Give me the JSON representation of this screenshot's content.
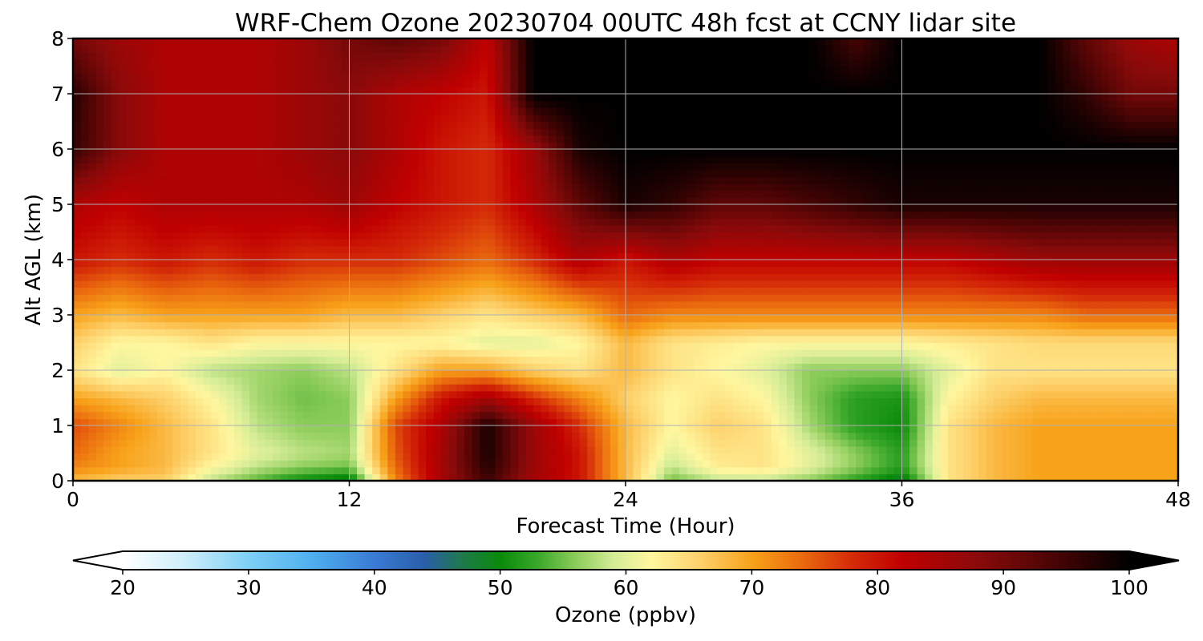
{
  "chart_data": {
    "type": "heatmap",
    "title": "WRF-Chem Ozone  20230704 00UTC 48h fcst at CCNY lidar site",
    "xlabel": "Forecast Time (Hour)",
    "ylabel": "Alt AGL (km)",
    "xlim": [
      0,
      48
    ],
    "ylim": [
      0,
      8
    ],
    "x_ticks": [
      "0",
      "12",
      "24",
      "36",
      "48"
    ],
    "y_ticks": [
      "0",
      "1",
      "2",
      "3",
      "4",
      "5",
      "6",
      "7",
      "8"
    ],
    "grid": true,
    "colorbar": {
      "label": "Ozone  (ppbv)",
      "min": 20,
      "max": 100,
      "ticks": [
        "20",
        "30",
        "40",
        "50",
        "60",
        "70",
        "80",
        "90",
        "100"
      ],
      "extend": "both",
      "stops": [
        [
          20,
          "#ffffff"
        ],
        [
          25,
          "#cdeefb"
        ],
        [
          30,
          "#7fcff5"
        ],
        [
          35,
          "#4fb0ef"
        ],
        [
          40,
          "#3a7bd5"
        ],
        [
          44,
          "#2a5ea8"
        ],
        [
          47,
          "#1e7a4a"
        ],
        [
          50,
          "#0a8a0a"
        ],
        [
          53,
          "#3aa82a"
        ],
        [
          56,
          "#8ccc5a"
        ],
        [
          59,
          "#d4ec96"
        ],
        [
          62,
          "#fff7a0"
        ],
        [
          66,
          "#fdd06a"
        ],
        [
          70,
          "#f8a21a"
        ],
        [
          74,
          "#ea6a0e"
        ],
        [
          78,
          "#d42a08"
        ],
        [
          82,
          "#c00000"
        ],
        [
          88,
          "#8a0a0a"
        ],
        [
          94,
          "#4a0404"
        ],
        [
          100,
          "#000000"
        ]
      ]
    },
    "x_hours": [
      0,
      2,
      4,
      6,
      8,
      10,
      12,
      14,
      16,
      18,
      20,
      22,
      24,
      26,
      28,
      30,
      32,
      34,
      36,
      38,
      40,
      42,
      44,
      46,
      48
    ],
    "z_km": [
      0,
      0.25,
      0.5,
      1,
      1.5,
      2,
      2.5,
      3,
      4,
      5,
      6,
      7,
      8
    ],
    "values": [
      [
        68,
        66,
        66,
        58,
        54,
        50,
        48,
        72,
        85,
        95,
        85,
        80,
        68,
        55,
        58,
        58,
        56,
        52,
        48,
        64,
        68,
        70,
        70,
        70,
        70
      ],
      [
        72,
        70,
        68,
        62,
        58,
        56,
        55,
        74,
        85,
        97,
        86,
        80,
        68,
        58,
        63,
        64,
        60,
        56,
        52,
        64,
        68,
        70,
        70,
        70,
        70
      ],
      [
        74,
        70,
        68,
        64,
        60,
        58,
        57,
        75,
        85,
        98,
        86,
        80,
        68,
        60,
        64,
        64,
        60,
        56,
        52,
        64,
        68,
        70,
        70,
        70,
        70
      ],
      [
        76,
        72,
        68,
        64,
        58,
        56,
        56,
        76,
        84,
        98,
        86,
        78,
        68,
        62,
        66,
        64,
        57,
        52,
        50,
        64,
        68,
        70,
        70,
        70,
        70
      ],
      [
        70,
        68,
        66,
        62,
        57,
        55,
        56,
        70,
        80,
        85,
        78,
        72,
        66,
        62,
        64,
        62,
        56,
        52,
        51,
        62,
        66,
        68,
        68,
        68,
        68
      ],
      [
        64,
        60,
        62,
        58,
        57,
        56,
        58,
        64,
        70,
        70,
        66,
        64,
        68,
        64,
        62,
        60,
        56,
        56,
        56,
        60,
        64,
        64,
        64,
        64,
        64
      ],
      [
        66,
        62,
        62,
        64,
        62,
        62,
        62,
        62,
        62,
        60,
        60,
        62,
        68,
        64,
        63,
        62,
        62,
        62,
        62,
        63,
        64,
        65,
        65,
        65,
        65
      ],
      [
        70,
        68,
        70,
        70,
        70,
        70,
        68,
        68,
        66,
        64,
        66,
        68,
        74,
        72,
        72,
        72,
        72,
        72,
        72,
        72,
        72,
        72,
        74,
        74,
        74
      ],
      [
        80,
        78,
        80,
        78,
        80,
        78,
        78,
        78,
        76,
        74,
        78,
        84,
        80,
        84,
        82,
        82,
        82,
        82,
        82,
        82,
        84,
        86,
        86,
        86,
        86
      ],
      [
        84,
        82,
        84,
        84,
        84,
        84,
        86,
        82,
        80,
        78,
        84,
        92,
        98,
        96,
        92,
        92,
        94,
        96,
        98,
        98,
        98,
        98,
        98,
        98,
        98
      ],
      [
        96,
        88,
        84,
        84,
        84,
        86,
        88,
        84,
        80,
        78,
        86,
        98,
        100,
        100,
        100,
        100,
        100,
        100,
        100,
        100,
        100,
        100,
        100,
        100,
        100
      ],
      [
        97,
        88,
        84,
        84,
        84,
        86,
        88,
        84,
        82,
        80,
        100,
        100,
        100,
        100,
        100,
        100,
        100,
        100,
        100,
        100,
        100,
        100,
        96,
        90,
        90
      ],
      [
        90,
        86,
        84,
        84,
        84,
        86,
        90,
        92,
        90,
        82,
        100,
        100,
        100,
        100,
        100,
        100,
        100,
        94,
        100,
        100,
        100,
        100,
        92,
        86,
        84
      ]
    ]
  }
}
